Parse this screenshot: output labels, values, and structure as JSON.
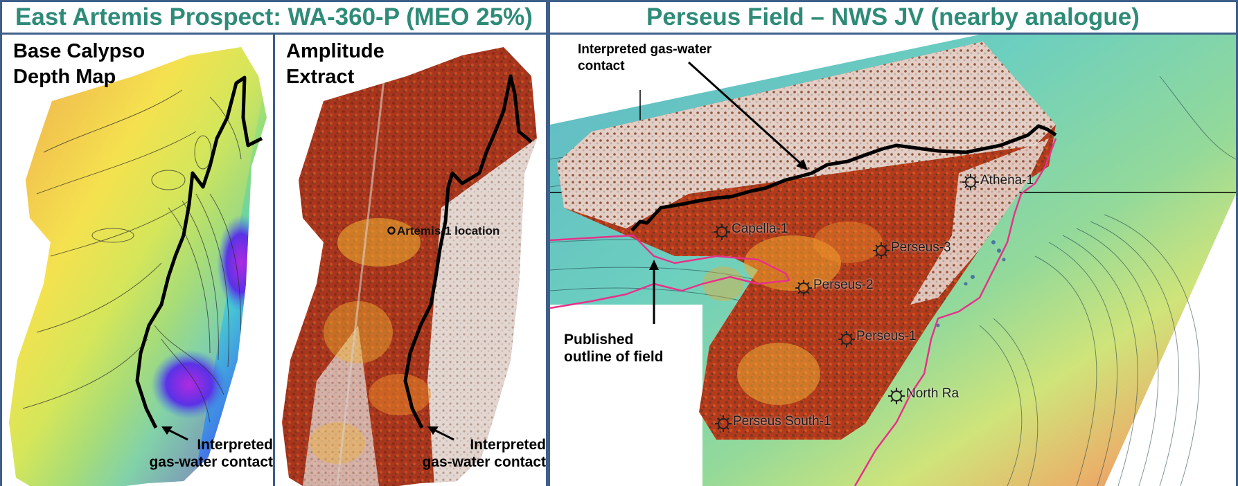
{
  "left_section": {
    "title": "East Artemis Prospect: WA-360-P (MEO 25%)",
    "depth_map": {
      "title": "Base Calypso\nDepth Map",
      "callout": "Interpreted\ngas-water contact"
    },
    "amplitude": {
      "title": "Amplitude\nExtract",
      "location_label": "Artemis-1 location",
      "callout": "Interpreted\ngas-water contact"
    }
  },
  "right_section": {
    "title": "Perseus Field – NWS JV (nearby analogue)",
    "gwc_callout": "Interpreted gas-water\ncontact",
    "outline_callout": "Published\noutline of field",
    "wells": [
      "Athena-1",
      "Capella-1",
      "Perseus-3",
      "Perseus-2",
      "Perseus-1",
      "North Ra",
      "Perseus South-1"
    ]
  },
  "colors": {
    "border": "#3e5f8a",
    "title_text": "#2e8b78",
    "gwc_line": "#000000",
    "field_outline": "#e8308a"
  }
}
